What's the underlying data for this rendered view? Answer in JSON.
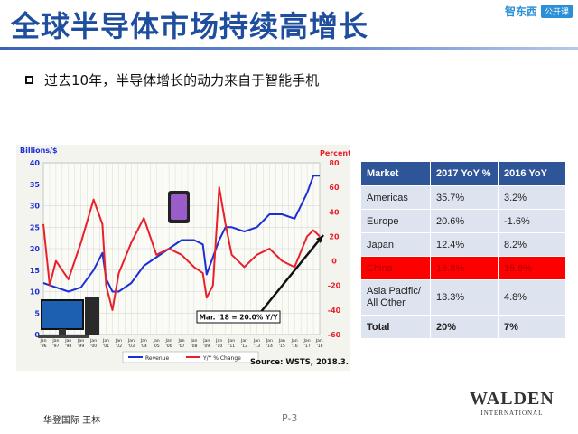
{
  "slide": {
    "title": "全球半导体市场持续高增长",
    "bullet": "过去10年，半导体增长的动力来自于智能手机",
    "footer_left": "华登国际 王林",
    "page": "P-3",
    "brand_logo": "智东西",
    "brand_tag": "公开课",
    "walden_name": "WALDEN",
    "walden_sub": "INTERNATIONAL"
  },
  "colors": {
    "title": "#1f4e9e",
    "revenue": "#1b2fd6",
    "yoy": "#e8202a",
    "header": "#2e5597",
    "highlight": "#ff0000"
  },
  "chart_data": {
    "type": "line",
    "title": "",
    "ylabel_left": "Billions/$",
    "ylabel_right": "Percent",
    "ylim_left": [
      0,
      40
    ],
    "ylim_right": [
      -60,
      80
    ],
    "yticks_left": [
      "40",
      "35",
      "30",
      "25",
      "20",
      "15",
      "10",
      "5",
      "0"
    ],
    "yticks_right": [
      "80",
      "60",
      "40",
      "20",
      "0",
      "-20",
      "-40",
      "-60"
    ],
    "x_top": [
      "Jan",
      "Jan",
      "Jan",
      "Jan",
      "Jan",
      "Jan",
      "Jan",
      "Jan",
      "Jan",
      "Jan",
      "Jan",
      "Jan",
      "Jan",
      "Jan",
      "Jan",
      "Jan",
      "Jan",
      "Jan",
      "Jan",
      "Jan",
      "Jan",
      "Jan",
      "Jan."
    ],
    "x_bottom": [
      "'96",
      "'97",
      "'98",
      "'99",
      "'00",
      "'01",
      "'02",
      "'03",
      "'04",
      "'05",
      "'06",
      "'07",
      "'08",
      "'09",
      "'10",
      "'11",
      "'12",
      "'13",
      "'14",
      "'15",
      "'16",
      "'17",
      "'18"
    ],
    "series": [
      {
        "name": "Revenue",
        "axis": "left",
        "x": [
          1996,
          1997,
          1998,
          1999,
          2000,
          2000.7,
          2001,
          2001.5,
          2002,
          2003,
          2004,
          2005,
          2006,
          2007,
          2008,
          2008.7,
          2009,
          2010,
          2010.5,
          2011,
          2012,
          2013,
          2014,
          2015,
          2016,
          2017,
          2017.5,
          2018
        ],
        "values": [
          12,
          11,
          10,
          11,
          15,
          19,
          13,
          10,
          10,
          12,
          16,
          18,
          20,
          22,
          22,
          21,
          14,
          22,
          25,
          25,
          24,
          25,
          28,
          28,
          27,
          33,
          37,
          37
        ]
      },
      {
        "name": "Y/Y % Change",
        "axis": "right",
        "x": [
          1996,
          1996.5,
          1997,
          1998,
          1999,
          2000,
          2000.7,
          2001,
          2001.5,
          2002,
          2003,
          2004,
          2005,
          2006,
          2007,
          2008,
          2008.7,
          2009,
          2009.5,
          2010,
          2010.5,
          2011,
          2012,
          2013,
          2014,
          2015,
          2016,
          2017,
          2017.5,
          2018
        ],
        "values": [
          30,
          -20,
          0,
          -15,
          15,
          50,
          30,
          -20,
          -40,
          -10,
          15,
          35,
          5,
          10,
          5,
          -5,
          -10,
          -30,
          -20,
          60,
          30,
          5,
          -5,
          5,
          10,
          0,
          -5,
          20,
          25,
          20
        ]
      }
    ],
    "legend": [
      "Revenue",
      "Y/Y % Change"
    ],
    "annotation": "Mar. '18 = 20.0% Y/Y",
    "source": "Source: WSTS, 2018.3."
  },
  "table": {
    "headers": [
      "Market",
      "2017 YoY %",
      "2016 YoY"
    ],
    "rows": [
      [
        "Americas",
        "35.7%",
        "3.2%"
      ],
      [
        "Europe",
        "20.6%",
        "-1.6%"
      ],
      [
        "Japan",
        "12.4%",
        "8.2%"
      ],
      [
        "China",
        "18.8%",
        "15.8%"
      ],
      [
        "Asia Pacific/ All Other",
        "13.3%",
        "4.8%"
      ],
      [
        "Total",
        "20%",
        "7%"
      ]
    ]
  }
}
